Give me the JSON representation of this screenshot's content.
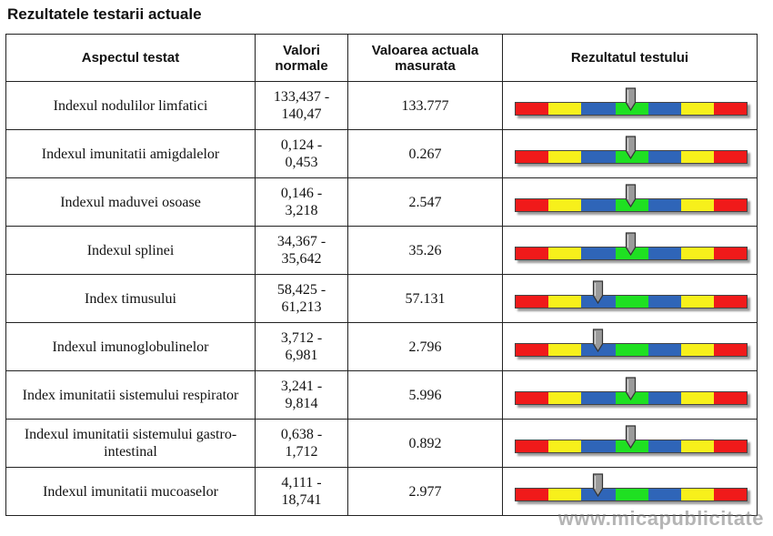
{
  "title": "Rezultatele testarii actuale",
  "headers": [
    "Aspectul testat",
    "Valori normale",
    "Valoarea actuala masurata",
    "Rezultatul testului"
  ],
  "gauge_segments": [
    "red",
    "yellow",
    "blue",
    "green",
    "blue",
    "yellow",
    "red"
  ],
  "colors": {
    "red": "#f01a1a",
    "yellow": "#f7f01b",
    "blue": "#2f65b8",
    "green": "#1fe022",
    "pointer": "#9a9a9a"
  },
  "rows": [
    {
      "aspect": "Indexul nodulilor limfatici",
      "normal_low": "133,437 -",
      "normal_high": "140,47",
      "measured": "133.777",
      "pointer_level": 0.5
    },
    {
      "aspect": "Indexul imunitatii amigdalelor",
      "normal_low": "0,124 -",
      "normal_high": "0,453",
      "measured": "0.267",
      "pointer_level": 0.5
    },
    {
      "aspect": "Indexul maduvei osoase",
      "normal_low": "0,146 -",
      "normal_high": "3,218",
      "measured": "2.547",
      "pointer_level": 0.5
    },
    {
      "aspect": "Indexul splinei",
      "normal_low": "34,367 -",
      "normal_high": "35,642",
      "measured": "35.26",
      "pointer_level": 0.5
    },
    {
      "aspect": "Index timusului",
      "normal_low": "58,425 -",
      "normal_high": "61,213",
      "measured": "57.131",
      "pointer_level": 0.36
    },
    {
      "aspect": "Indexul imunoglobulinelor",
      "normal_low": "3,712 -",
      "normal_high": "6,981",
      "measured": "2.796",
      "pointer_level": 0.36
    },
    {
      "aspect": "Index imunitatii sistemului respirator",
      "normal_low": "3,241 -",
      "normal_high": "9,814",
      "measured": "5.996",
      "pointer_level": 0.5
    },
    {
      "aspect": "Indexul imunitatii sistemului gastro-intestinal",
      "normal_low": "0,638 -",
      "normal_high": "1,712",
      "measured": "0.892",
      "pointer_level": 0.5
    },
    {
      "aspect": "Indexul imunitatii mucoaselor",
      "normal_low": "4,111 -",
      "normal_high": "18,741",
      "measured": "2.977",
      "pointer_level": 0.36
    }
  ],
  "watermark": "www.micapublicitate"
}
